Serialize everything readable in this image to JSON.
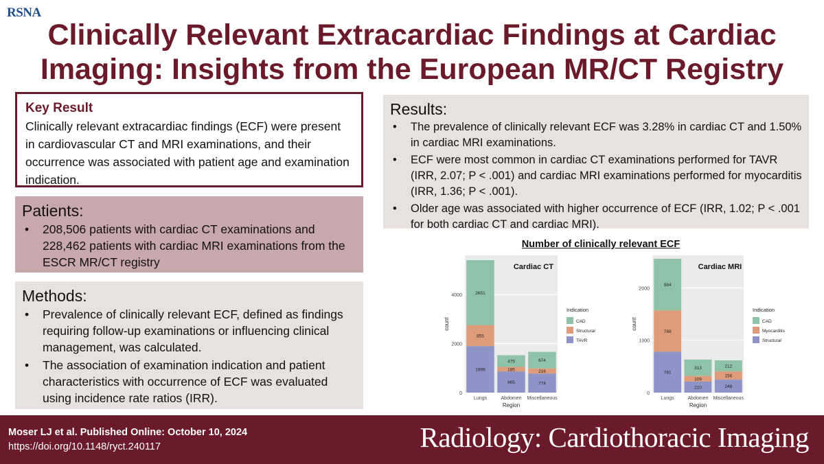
{
  "logo": "RSNA",
  "title": {
    "line1": "Clinically Relevant Extracardiac Findings at Cardiac",
    "line2": "Imaging: Insights from the European MR/CT Registry"
  },
  "key_result": {
    "heading": "Key Result",
    "text": "Clinically relevant extracardiac findings (ECF) were present in cardiovascular CT and MRI examinations, and their occurrence was associated with patient age and examination indication."
  },
  "patients": {
    "heading": "Patients:",
    "items": [
      "208,506 patients with cardiac CT examinations and 228,462 patients with cardiac MRI examinations from the ESCR MR/CT registry"
    ]
  },
  "methods": {
    "heading": "Methods:",
    "items": [
      "Prevalence of clinically relevant ECF, defined as findings requiring follow-up examinations or influencing clinical management, was calculated.",
      "The association of examination indication and patient characteristics with occurrence of ECF was evaluated using incidence rate ratios (IRR)."
    ]
  },
  "results": {
    "heading": "Results:",
    "items": [
      "The prevalence of clinically relevant ECF was 3.28% in cardiac CT and 1.50% in cardiac MRI examinations.",
      "ECF were most common in cardiac CT examinations performed for TAVR (IRR, 2.07; P < .001) and cardiac MRI examinations performed for myocarditis (IRR, 1.36; P < .001).",
      "Older age was associated with higher occurrence of ECF (IRR, 1.02; P < .001 for both cardiac CT and cardiac MRI)."
    ]
  },
  "figure_title": "Number of clinically relevant ECF",
  "chart_data": [
    {
      "type": "bar",
      "stacked": true,
      "title": "Cardiac CT",
      "xlabel": "Region",
      "ylabel": "count",
      "categories": [
        "Lungs",
        "Abdomen",
        "Miscellaneous"
      ],
      "yticks": [
        0,
        2000,
        4000
      ],
      "ylim": [
        0,
        5600
      ],
      "legend_title": "Indication",
      "legend_position": "right",
      "series": [
        {
          "name": "TAVR",
          "color": "#8e94c8",
          "values": [
            1899,
            865,
            774
          ]
        },
        {
          "name": "Structural",
          "color": "#df9c7a",
          "values": [
            855,
            185,
            216
          ]
        },
        {
          "name": "CAD",
          "color": "#8fc3a8",
          "values": [
            2651,
            475,
            674
          ]
        }
      ],
      "legend_order": [
        "CAD",
        "Structural",
        "TAVR"
      ]
    },
    {
      "type": "bar",
      "stacked": true,
      "title": "Cardiac MRI",
      "xlabel": "Region",
      "ylabel": "count",
      "categories": [
        "Lungs",
        "Abdomen",
        "Miscellaneous"
      ],
      "yticks": [
        0,
        1000,
        2000
      ],
      "ylim": [
        0,
        2620
      ],
      "legend_title": "Indication",
      "legend_position": "right",
      "series": [
        {
          "name": "Structural",
          "color": "#8e94c8",
          "values": [
            781,
            210,
            248
          ]
        },
        {
          "name": "Myocarditis",
          "color": "#df9c7a",
          "values": [
            789,
            109,
            156
          ]
        },
        {
          "name": "CAD",
          "color": "#8fc3a8",
          "values": [
            984,
            313,
            212
          ]
        }
      ],
      "legend_order": [
        "CAD",
        "Myocarditis",
        "Structural"
      ]
    }
  ],
  "footer": {
    "citation": "Moser LJ et al. Published Online: October 10, 2024",
    "doi": "https://doi.org/10.1148/ryct.240117",
    "journal": "Radiology: Cardiothoracic Imaging"
  }
}
